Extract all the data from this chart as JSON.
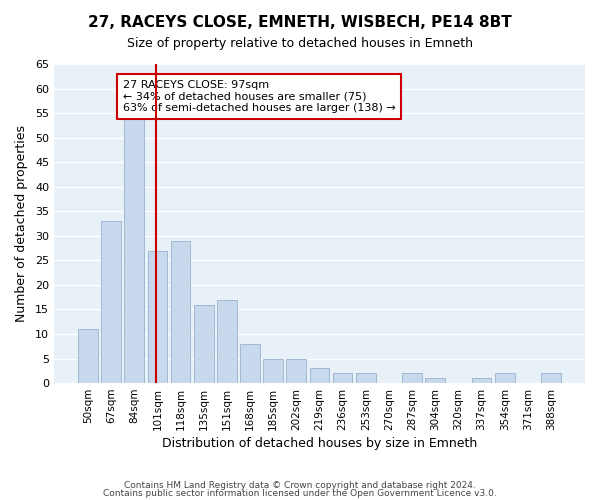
{
  "title": "27, RACEYS CLOSE, EMNETH, WISBECH, PE14 8BT",
  "subtitle": "Size of property relative to detached houses in Emneth",
  "xlabel": "Distribution of detached houses by size in Emneth",
  "ylabel": "Number of detached properties",
  "bar_color": "#c8d9ed",
  "bar_edge_color": "#a0b8d0",
  "background_color": "#ffffff",
  "grid_color": "#ffffff",
  "plot_bg_color": "#e8f0f8",
  "categories": [
    "50sqm",
    "67sqm",
    "84sqm",
    "101sqm",
    "118sqm",
    "135sqm",
    "151sqm",
    "168sqm",
    "185sqm",
    "202sqm",
    "219sqm",
    "236sqm",
    "253sqm",
    "270sqm",
    "287sqm",
    "304sqm",
    "320sqm",
    "337sqm",
    "354sqm",
    "371sqm",
    "388sqm"
  ],
  "values": [
    11,
    33,
    54,
    27,
    29,
    16,
    17,
    8,
    5,
    5,
    3,
    2,
    2,
    0,
    2,
    1,
    0,
    1,
    2,
    0,
    2
  ],
  "ylim": [
    0,
    65
  ],
  "yticks": [
    0,
    5,
    10,
    15,
    20,
    25,
    30,
    35,
    40,
    45,
    50,
    55,
    60,
    65
  ],
  "vline_x": 2.925,
  "vline_color": "#cc0000",
  "annotation_title": "27 RACEYS CLOSE: 97sqm",
  "annotation_line1": "← 34% of detached houses are smaller (75)",
  "annotation_line2": "63% of semi-detached houses are larger (138) →",
  "annotation_box_color": "#ffffff",
  "annotation_box_edge": "#cc0000",
  "footer_line1": "Contains HM Land Registry data © Crown copyright and database right 2024.",
  "footer_line2": "Contains public sector information licensed under the Open Government Licence v3.0."
}
